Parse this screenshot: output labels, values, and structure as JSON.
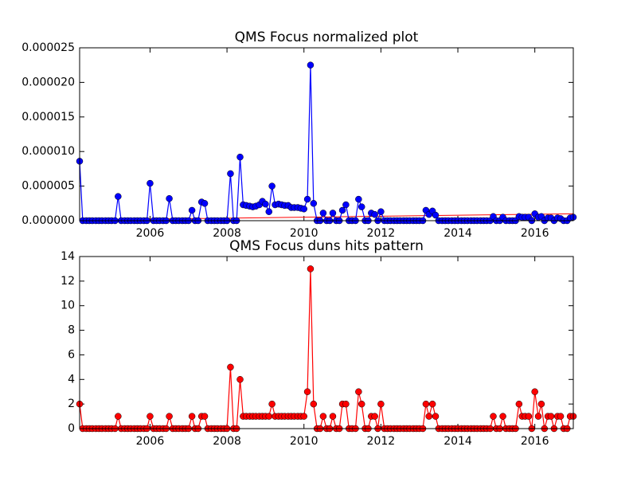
{
  "chart_data": [
    {
      "type": "line",
      "title": "QMS Focus normalized plot",
      "x": [
        2004.17,
        2004.25,
        2004.34,
        2004.42,
        2004.5,
        2004.59,
        2004.67,
        2004.75,
        2004.84,
        2004.92,
        2005.0,
        2005.09,
        2005.17,
        2005.25,
        2005.34,
        2005.42,
        2005.5,
        2005.59,
        2005.67,
        2005.75,
        2005.84,
        2005.92,
        2006.0,
        2006.09,
        2006.17,
        2006.25,
        2006.34,
        2006.42,
        2006.5,
        2006.59,
        2006.67,
        2006.75,
        2006.84,
        2006.92,
        2007.0,
        2007.09,
        2007.17,
        2007.25,
        2007.34,
        2007.42,
        2007.5,
        2007.59,
        2007.67,
        2007.75,
        2007.84,
        2007.92,
        2008.0,
        2008.09,
        2008.17,
        2008.25,
        2008.34,
        2008.42,
        2008.5,
        2008.59,
        2008.67,
        2008.75,
        2008.84,
        2008.92,
        2009.0,
        2009.09,
        2009.17,
        2009.25,
        2009.34,
        2009.42,
        2009.5,
        2009.59,
        2009.67,
        2009.75,
        2009.84,
        2009.92,
        2010.0,
        2010.09,
        2010.17,
        2010.25,
        2010.34,
        2010.42,
        2010.5,
        2010.59,
        2010.67,
        2010.75,
        2010.84,
        2010.92,
        2011.0,
        2011.09,
        2011.17,
        2011.25,
        2011.34,
        2011.42,
        2011.5,
        2011.59,
        2011.67,
        2011.75,
        2011.84,
        2011.92,
        2012.0,
        2012.09,
        2012.17,
        2012.25,
        2012.34,
        2012.42,
        2012.5,
        2012.59,
        2012.67,
        2012.75,
        2012.84,
        2012.92,
        2013.0,
        2013.09,
        2013.17,
        2013.25,
        2013.34,
        2013.42,
        2013.5,
        2013.59,
        2013.67,
        2013.75,
        2013.84,
        2013.92,
        2014.0,
        2014.09,
        2014.17,
        2014.25,
        2014.34,
        2014.42,
        2014.5,
        2014.59,
        2014.67,
        2014.75,
        2014.84,
        2014.92,
        2015.0,
        2015.09,
        2015.17,
        2015.25,
        2015.34,
        2015.42,
        2015.5,
        2015.59,
        2015.67,
        2015.75,
        2015.84,
        2015.92,
        2016.0,
        2016.09,
        2016.17,
        2016.25,
        2016.34,
        2016.42,
        2016.5,
        2016.59,
        2016.67,
        2016.75,
        2016.84,
        2016.92,
        2017.0
      ],
      "series": [
        {
          "color": "#0000ff",
          "values": [
            8.6e-06,
            0,
            0,
            0,
            0,
            0,
            0,
            0,
            0,
            0,
            0,
            0,
            3.5e-06,
            0,
            0,
            0,
            0,
            0,
            0,
            0,
            0,
            0,
            5.4e-06,
            0,
            0,
            0,
            0,
            0,
            3.2e-06,
            0,
            0,
            0,
            0,
            0,
            0,
            1.5e-06,
            0,
            0,
            2.7e-06,
            2.5e-06,
            0,
            0,
            0,
            0,
            0,
            0,
            0,
            6.8e-06,
            0,
            0,
            9.2e-06,
            2.3e-06,
            2.2e-06,
            2.1e-06,
            2e-06,
            2.1e-06,
            2.3e-06,
            2.8e-06,
            2.4e-06,
            1.3e-06,
            5e-06,
            2.3e-06,
            2.4e-06,
            2.3e-06,
            2.2e-06,
            2.2e-06,
            1.9e-06,
            1.9e-06,
            1.9e-06,
            1.8e-06,
            1.7e-06,
            3.1e-06,
            2.25e-05,
            2.5e-06,
            0,
            0,
            1.1e-06,
            0,
            0,
            1.1e-06,
            0,
            0,
            1.5e-06,
            2.3e-06,
            0,
            0,
            0,
            3.1e-06,
            2e-06,
            0,
            0,
            1.1e-06,
            9e-07,
            0,
            1.3e-06,
            0,
            0,
            0,
            0,
            0,
            0,
            0,
            0,
            0,
            0,
            0,
            0,
            0,
            1.5e-06,
            9e-07,
            1.4e-06,
            8e-07,
            0,
            0,
            0,
            0,
            0,
            0,
            0,
            0,
            0,
            0,
            0,
            0,
            0,
            0,
            0,
            0,
            0,
            6e-07,
            0,
            0,
            5e-07,
            0,
            0,
            0,
            0,
            6e-07,
            5e-07,
            5e-07,
            5e-07,
            0,
            1e-06,
            5e-07,
            6e-07,
            0,
            4e-07,
            4e-07,
            0,
            4e-07,
            3e-07,
            0,
            0,
            4e-07,
            5e-07
          ]
        }
      ],
      "trend": {
        "color": "#ff0000",
        "x": [
          2004.17,
          2017.0
        ],
        "values": [
          1e-07,
          1e-06
        ]
      },
      "xlim": [
        2004.17,
        2017.0
      ],
      "xticks": [
        2006,
        2008,
        2010,
        2012,
        2014,
        2016
      ],
      "ylim": [
        0,
        2.5e-05
      ],
      "yticks": [
        {
          "value": 0,
          "label": "0.000000"
        },
        {
          "value": 5e-06,
          "label": "0.000005"
        },
        {
          "value": 1e-05,
          "label": "0.000010"
        },
        {
          "value": 1.5e-05,
          "label": "0.000015"
        },
        {
          "value": 2e-05,
          "label": "0.000020"
        },
        {
          "value": 2.5e-05,
          "label": "0.000025"
        }
      ]
    },
    {
      "type": "line",
      "title": "QMS Focus duns hits pattern",
      "x": [
        2004.17,
        2004.25,
        2004.34,
        2004.42,
        2004.5,
        2004.59,
        2004.67,
        2004.75,
        2004.84,
        2004.92,
        2005.0,
        2005.09,
        2005.17,
        2005.25,
        2005.34,
        2005.42,
        2005.5,
        2005.59,
        2005.67,
        2005.75,
        2005.84,
        2005.92,
        2006.0,
        2006.09,
        2006.17,
        2006.25,
        2006.34,
        2006.42,
        2006.5,
        2006.59,
        2006.67,
        2006.75,
        2006.84,
        2006.92,
        2007.0,
        2007.09,
        2007.17,
        2007.25,
        2007.34,
        2007.42,
        2007.5,
        2007.59,
        2007.67,
        2007.75,
        2007.84,
        2007.92,
        2008.0,
        2008.09,
        2008.17,
        2008.25,
        2008.34,
        2008.42,
        2008.5,
        2008.59,
        2008.67,
        2008.75,
        2008.84,
        2008.92,
        2009.0,
        2009.09,
        2009.17,
        2009.25,
        2009.34,
        2009.42,
        2009.5,
        2009.59,
        2009.67,
        2009.75,
        2009.84,
        2009.92,
        2010.0,
        2010.09,
        2010.17,
        2010.25,
        2010.34,
        2010.42,
        2010.5,
        2010.59,
        2010.67,
        2010.75,
        2010.84,
        2010.92,
        2011.0,
        2011.09,
        2011.17,
        2011.25,
        2011.34,
        2011.42,
        2011.5,
        2011.59,
        2011.67,
        2011.75,
        2011.84,
        2011.92,
        2012.0,
        2012.09,
        2012.17,
        2012.25,
        2012.34,
        2012.42,
        2012.5,
        2012.59,
        2012.67,
        2012.75,
        2012.84,
        2012.92,
        2013.0,
        2013.09,
        2013.17,
        2013.25,
        2013.34,
        2013.42,
        2013.5,
        2013.59,
        2013.67,
        2013.75,
        2013.84,
        2013.92,
        2014.0,
        2014.09,
        2014.17,
        2014.25,
        2014.34,
        2014.42,
        2014.5,
        2014.59,
        2014.67,
        2014.75,
        2014.84,
        2014.92,
        2015.0,
        2015.09,
        2015.17,
        2015.25,
        2015.34,
        2015.42,
        2015.5,
        2015.59,
        2015.67,
        2015.75,
        2015.84,
        2015.92,
        2016.0,
        2016.09,
        2016.17,
        2016.25,
        2016.34,
        2016.42,
        2016.5,
        2016.59,
        2016.67,
        2016.75,
        2016.84,
        2016.92,
        2017.0
      ],
      "series": [
        {
          "color": "#ff0000",
          "values": [
            2,
            0,
            0,
            0,
            0,
            0,
            0,
            0,
            0,
            0,
            0,
            0,
            1,
            0,
            0,
            0,
            0,
            0,
            0,
            0,
            0,
            0,
            1,
            0,
            0,
            0,
            0,
            0,
            1,
            0,
            0,
            0,
            0,
            0,
            0,
            1,
            0,
            0,
            1,
            1,
            0,
            0,
            0,
            0,
            0,
            0,
            0,
            5,
            0,
            0,
            4,
            1,
            1,
            1,
            1,
            1,
            1,
            1,
            1,
            1,
            2,
            1,
            1,
            1,
            1,
            1,
            1,
            1,
            1,
            1,
            1,
            3,
            13,
            2,
            0,
            0,
            1,
            0,
            0,
            1,
            0,
            0,
            2,
            2,
            0,
            0,
            0,
            3,
            2,
            0,
            0,
            1,
            1,
            0,
            2,
            0,
            0,
            0,
            0,
            0,
            0,
            0,
            0,
            0,
            0,
            0,
            0,
            0,
            2,
            1,
            2,
            1,
            0,
            0,
            0,
            0,
            0,
            0,
            0,
            0,
            0,
            0,
            0,
            0,
            0,
            0,
            0,
            0,
            0,
            1,
            0,
            0,
            1,
            0,
            0,
            0,
            0,
            2,
            1,
            1,
            1,
            0,
            3,
            1,
            2,
            0,
            1,
            1,
            0,
            1,
            1,
            0,
            0,
            1,
            1
          ]
        }
      ],
      "xlim": [
        2004.17,
        2017.0
      ],
      "xticks": [
        2006,
        2008,
        2010,
        2012,
        2014,
        2016
      ],
      "ylim": [
        0,
        14
      ],
      "yticks": [
        0,
        2,
        4,
        6,
        8,
        10,
        12,
        14
      ]
    }
  ]
}
